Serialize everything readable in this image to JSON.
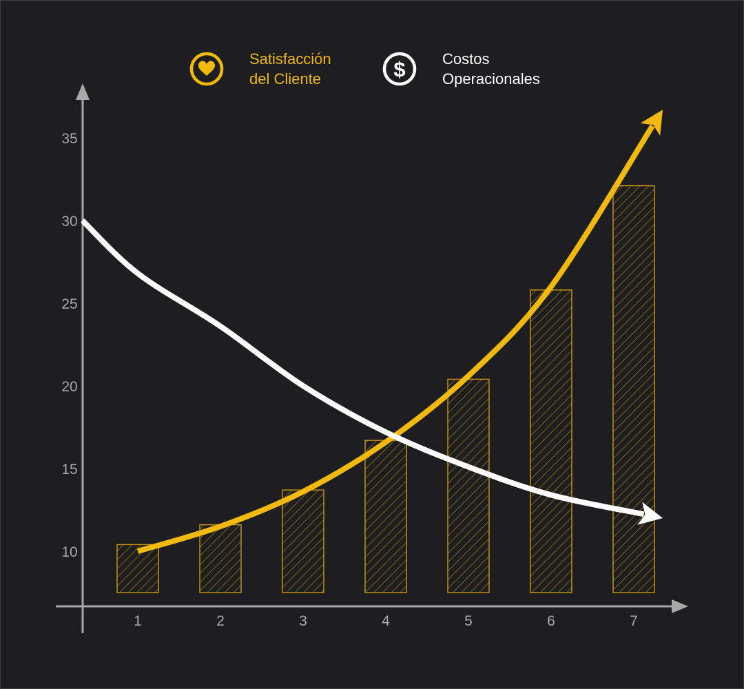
{
  "chart_data": {
    "type": "bar",
    "x": [
      1,
      2,
      3,
      4,
      5,
      6,
      7
    ],
    "tick_labels_x": [
      "1",
      "2",
      "3",
      "4",
      "5",
      "6",
      "7"
    ],
    "y_ticks": [
      10,
      15,
      20,
      25,
      30,
      35
    ],
    "tick_labels_y": [
      "10",
      "15",
      "20",
      "25",
      "30",
      "35"
    ],
    "ylim": [
      7,
      38
    ],
    "xlim": [
      0,
      8
    ],
    "grid": false,
    "legend_position": "top-center",
    "bars": {
      "series_ref": "satisfaction",
      "values": [
        10.4,
        11.6,
        13.7,
        16.7,
        20.4,
        25.8,
        32.1
      ],
      "baseline": 7.5,
      "pattern": "hatched"
    },
    "series": [
      {
        "key": "satisfaction",
        "name_lines": [
          "Satisfacción",
          "del Cliente"
        ],
        "icon": "heart-icon",
        "color": "#f0b90b",
        "curve": [
          [
            1,
            10.0
          ],
          [
            2,
            11.5
          ],
          [
            3,
            13.6
          ],
          [
            4,
            16.6
          ],
          [
            5,
            20.6
          ],
          [
            6,
            26.0
          ],
          [
            7.35,
            36.7
          ]
        ]
      },
      {
        "key": "costs",
        "name_lines": [
          "Costos",
          "Operacionales"
        ],
        "icon": "dollar-icon",
        "color": "#ffffff",
        "curve": [
          [
            0.33,
            30.0
          ],
          [
            1,
            26.8
          ],
          [
            2,
            23.6
          ],
          [
            3,
            20.0
          ],
          [
            4,
            17.2
          ],
          [
            5,
            15.1
          ],
          [
            6,
            13.4
          ],
          [
            7.35,
            12.0
          ]
        ]
      }
    ]
  }
}
